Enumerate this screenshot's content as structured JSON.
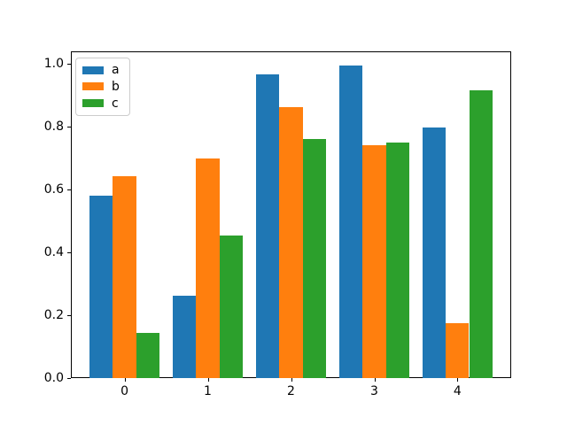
{
  "chart_data": {
    "type": "bar",
    "title": "",
    "xlabel": "",
    "ylabel": "",
    "categories": [
      "0",
      "1",
      "2",
      "3",
      "4"
    ],
    "series": [
      {
        "name": "a",
        "color": "#1f77b4",
        "values": [
          0.581,
          0.262,
          0.966,
          0.993,
          0.797
        ]
      },
      {
        "name": "b",
        "color": "#ff7f0e",
        "values": [
          0.642,
          0.698,
          0.862,
          0.74,
          0.175
        ]
      },
      {
        "name": "c",
        "color": "#2ca02c",
        "values": [
          0.144,
          0.454,
          0.76,
          0.75,
          0.914
        ]
      }
    ],
    "bar_width": 0.28,
    "xlim": [
      -0.645,
      4.645
    ],
    "ylim": [
      0,
      1.039
    ],
    "yticks": [
      0.0,
      0.2,
      0.4,
      0.6,
      0.8,
      1.0
    ],
    "ytick_labels": [
      "0.0",
      "0.2",
      "0.4",
      "0.6",
      "0.8",
      "1.0"
    ],
    "xtick_labels": [
      "0",
      "1",
      "2",
      "3",
      "4"
    ],
    "grid": false,
    "legend": {
      "position": "upper-left",
      "entries": [
        "a",
        "b",
        "c"
      ]
    }
  },
  "figure": {
    "background": "#ffffff",
    "spine_color": "#000000"
  }
}
